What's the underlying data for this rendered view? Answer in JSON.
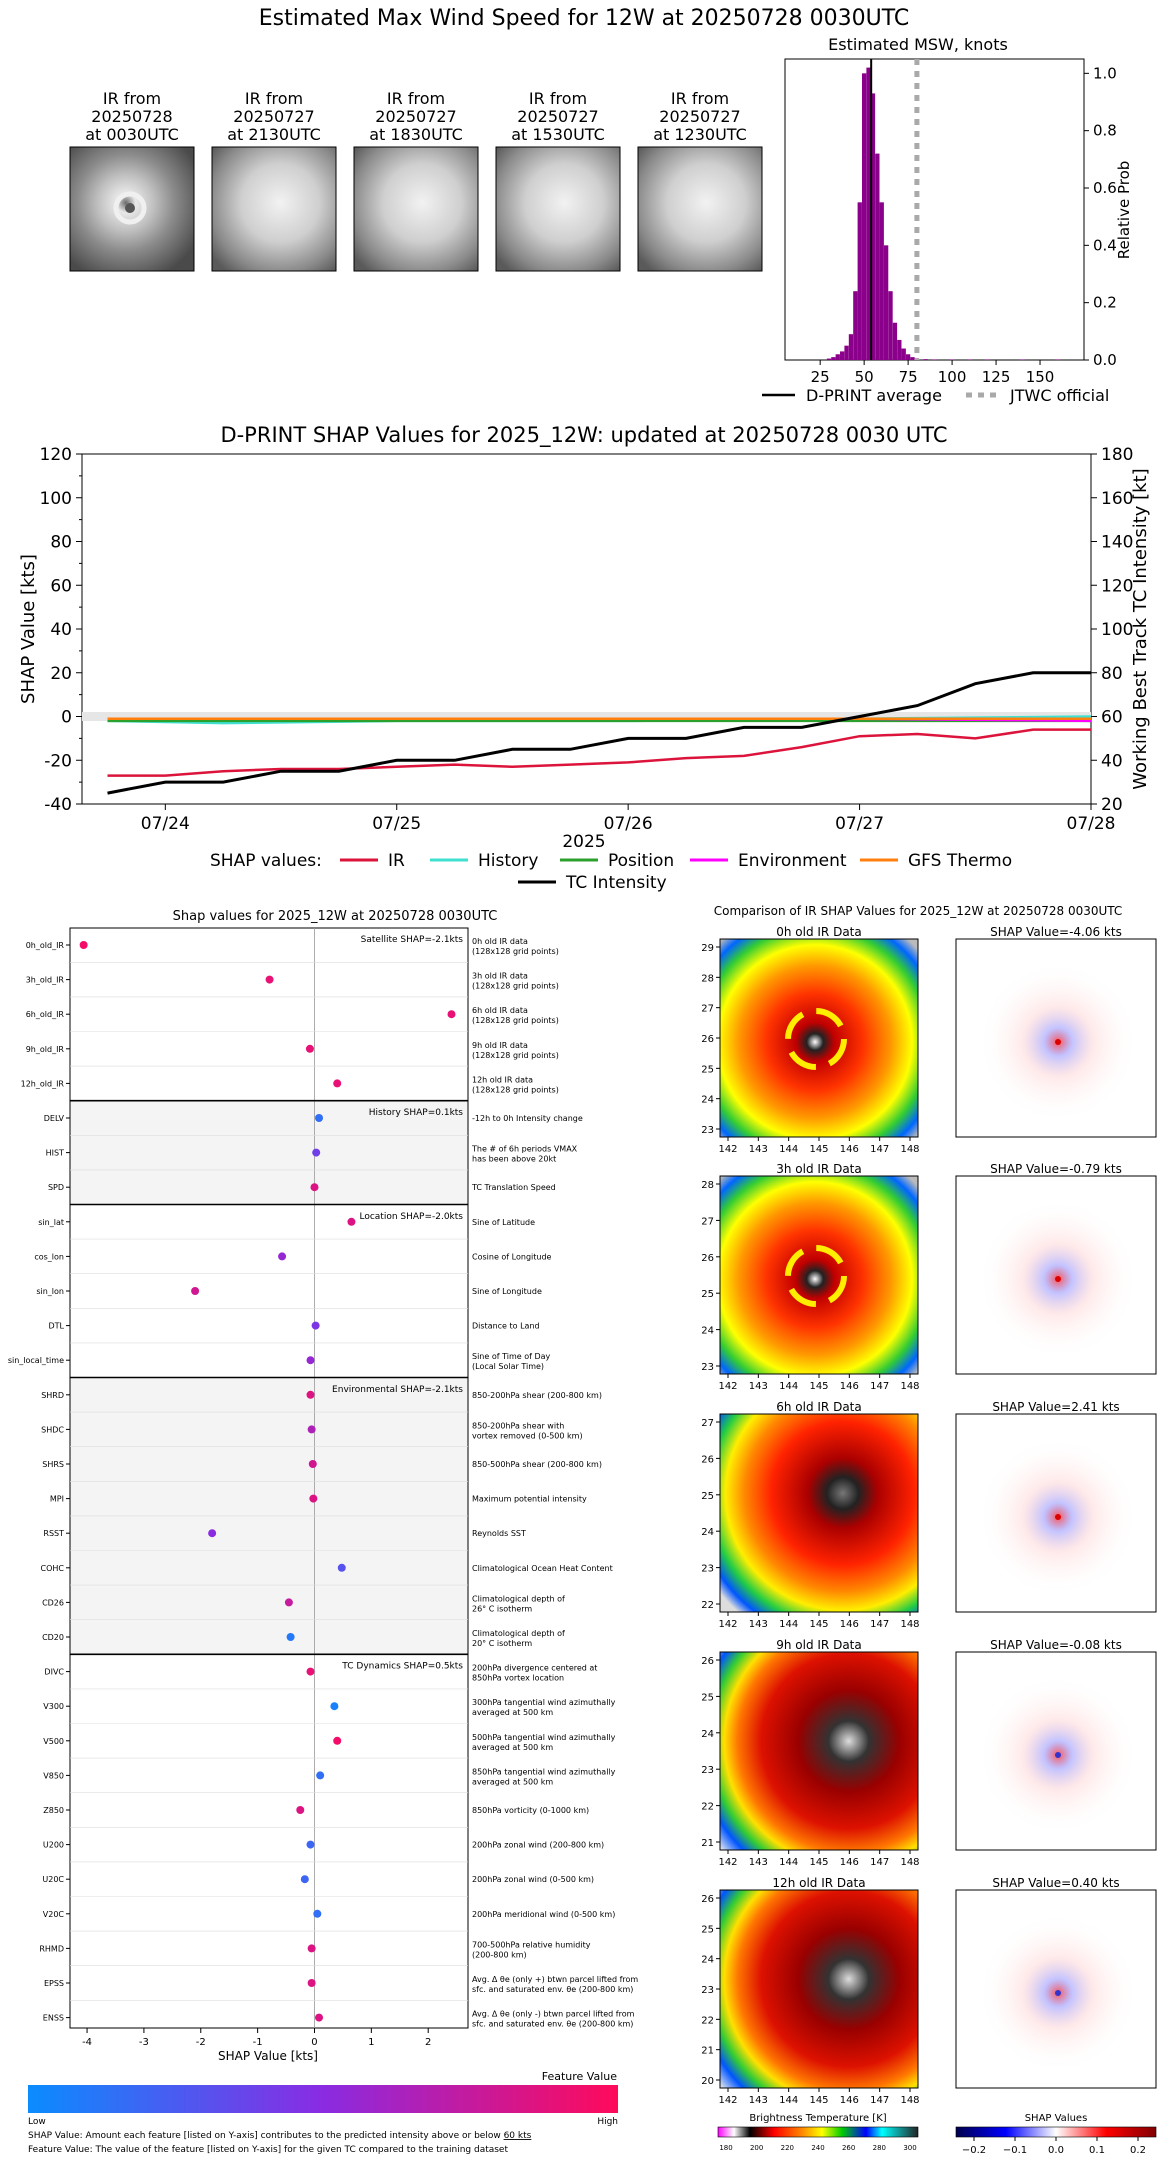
{
  "page_title": "Estimated Max Wind Speed for 12W at 20250728 0030UTC",
  "ir_thumbnails": [
    {
      "line1": "IR from",
      "line2": "20250728",
      "line3": "at 0030UTC"
    },
    {
      "line1": "IR from",
      "line2": "20250727",
      "line3": "at 2130UTC"
    },
    {
      "line1": "IR from",
      "line2": "20250727",
      "line3": "at 1830UTC"
    },
    {
      "line1": "IR from",
      "line2": "20250727",
      "line3": "at 1530UTC"
    },
    {
      "line1": "IR from",
      "line2": "20250727",
      "line3": "at 1230UTC"
    }
  ],
  "msw": {
    "title": "Estimated MSW, knots",
    "ylabel": "Relative Prob",
    "legend_avg": "D-PRINT average",
    "legend_jtwc": "JTWC official",
    "colors": {
      "bars": "#8b008b",
      "avg": "#000000",
      "jtwc": "#a9a9a9"
    }
  },
  "timeseries": {
    "title": "D-PRINT SHAP Values for 2025_12W: updated at 20250728 0030 UTC",
    "ylabel_left": "SHAP Value [kts]",
    "ylabel_right": "Working Best Track TC Intensity [kt]",
    "xlabel": "2025",
    "legend_title": "SHAP values:",
    "legend": [
      {
        "label": "IR",
        "color": "#dc143c"
      },
      {
        "label": "History",
        "color": "#40e0d0"
      },
      {
        "label": "Position",
        "color": "#2ca02c"
      },
      {
        "label": "Environment",
        "color": "#ff00ff"
      },
      {
        "label": "GFS Thermo",
        "color": "#ff7f0e"
      },
      {
        "label": "TC Intensity",
        "color": "#000000"
      }
    ]
  },
  "shap_panel": {
    "title": "Shap values for 2025_12W at 20250728 0030UTC",
    "xlabel": "SHAP Value [kts]",
    "groups": [
      {
        "label": "Satellite SHAP=-2.1kts"
      },
      {
        "label": "History SHAP=0.1kts"
      },
      {
        "label": "Location SHAP=-2.0kts"
      },
      {
        "label": "Environmental SHAP=-2.1kts"
      },
      {
        "label": "TC Dynamics SHAP=0.5kts"
      }
    ],
    "colorbar": {
      "title": "Feature Value",
      "low": "Low",
      "high": "High"
    },
    "footnote1_pre": "SHAP Value: Amount each feature [listed on Y-axis] contributes to the predicted intensity above or below ",
    "footnote1_link": "60 kts",
    "footnote2": "Feature Value: The value of the feature [listed on Y-axis] for the given TC compared to the training dataset"
  },
  "ir_compare": {
    "title": "Comparison of IR SHAP Values for 2025_12W at 20250728 0030UTC",
    "panels": [
      {
        "ir_title": "0h old IR Data",
        "shap_title": "SHAP Value=-4.06 kts"
      },
      {
        "ir_title": "3h old IR Data",
        "shap_title": "SHAP Value=-0.79 kts"
      },
      {
        "ir_title": "6h old IR Data",
        "shap_title": "SHAP Value=2.41 kts"
      },
      {
        "ir_title": "9h old IR Data",
        "shap_title": "SHAP Value=-0.08 kts"
      },
      {
        "ir_title": "12h old IR Data",
        "shap_title": "SHAP Value=0.40 kts"
      }
    ],
    "bt_colorbar_title": "Brightness Temperature [K]",
    "shap_colorbar_title": "SHAP Values"
  },
  "chart_data": [
    {
      "type": "bar",
      "title": "Estimated MSW, knots",
      "ylabel": "Relative Prob",
      "xlim": [
        5,
        175
      ],
      "ylim": [
        0,
        1.05
      ],
      "xticks": [
        25,
        50,
        75,
        100,
        125,
        150
      ],
      "yticks": [
        0.0,
        0.2,
        0.4,
        0.6,
        0.8,
        1.0
      ],
      "x": [
        30,
        32.5,
        35,
        37.5,
        40,
        42.5,
        45,
        47.5,
        50,
        52.5,
        55,
        57.5,
        60,
        62.5,
        65,
        67.5,
        70,
        72.5,
        75,
        77.5,
        80,
        85,
        90,
        100,
        110,
        120,
        140,
        160
      ],
      "values": [
        0.005,
        0.01,
        0.02,
        0.03,
        0.05,
        0.09,
        0.24,
        0.55,
        1.0,
        1.02,
        0.93,
        0.72,
        0.55,
        0.4,
        0.24,
        0.13,
        0.07,
        0.04,
        0.02,
        0.01,
        0.005,
        0.003,
        0.002,
        0.002,
        0.002,
        0.002,
        0.002,
        0.002
      ],
      "dprint_average": 54,
      "jtwc_official": 80,
      "legend": [
        "D-PRINT average",
        "JTWC official"
      ]
    },
    {
      "type": "line",
      "title": "D-PRINT SHAP Values for 2025_12W: updated at 20250728 0030 UTC",
      "xlabel": "2025",
      "ylabel": "SHAP Value [kts]",
      "ylabel_right": "Working Best Track TC Intensity [kt]",
      "xticks": [
        "07/24",
        "07/25",
        "07/26",
        "07/27",
        "07/28"
      ],
      "ylim": [
        -40,
        120
      ],
      "yticks": [
        -40,
        -20,
        0,
        20,
        40,
        60,
        80,
        100,
        120
      ],
      "ylim_right": [
        20,
        180
      ],
      "yticks_right": [
        20,
        40,
        60,
        80,
        100,
        120,
        140,
        160,
        180
      ],
      "series": [
        {
          "name": "IR",
          "color": "#dc143c",
          "x": [
            "07/23 18Z",
            "07/24 00Z",
            "07/24 06Z",
            "07/24 12Z",
            "07/24 18Z",
            "07/25 00Z",
            "07/25 06Z",
            "07/25 12Z",
            "07/25 18Z",
            "07/26 00Z",
            "07/26 06Z",
            "07/26 12Z",
            "07/26 18Z",
            "07/27 00Z",
            "07/27 06Z",
            "07/27 12Z",
            "07/27 18Z",
            "07/28 00Z"
          ],
          "values": [
            -27,
            -27,
            -25,
            -24,
            -24,
            -23,
            -22,
            -23,
            -22,
            -21,
            -19,
            -18,
            -14,
            -9,
            -8,
            -10,
            -6,
            -6
          ]
        },
        {
          "name": "History",
          "color": "#40e0d0",
          "x": [
            "07/23 18Z",
            "07/24 06Z",
            "07/25 00Z",
            "07/26 00Z",
            "07/27 00Z",
            "07/28 00Z"
          ],
          "values": [
            -2,
            -3,
            -2,
            -2,
            -1,
            0
          ]
        },
        {
          "name": "Position",
          "color": "#2ca02c",
          "x": [
            "07/23 18Z",
            "07/24 06Z",
            "07/25 00Z",
            "07/26 00Z",
            "07/27 00Z",
            "07/28 00Z"
          ],
          "values": [
            -2,
            -2,
            -2,
            -2,
            -2,
            -2
          ]
        },
        {
          "name": "Environment",
          "color": "#ff00ff",
          "x": [
            "07/23 18Z",
            "07/24 06Z",
            "07/25 00Z",
            "07/26 00Z",
            "07/27 00Z",
            "07/28 00Z"
          ],
          "values": [
            -1,
            -1,
            -1,
            -1,
            -1,
            -2
          ]
        },
        {
          "name": "GFS Thermo",
          "color": "#ff7f0e",
          "x": [
            "07/23 18Z",
            "07/24 06Z",
            "07/25 00Z",
            "07/26 00Z",
            "07/27 00Z",
            "07/28 00Z"
          ],
          "values": [
            -1,
            -1,
            -1,
            -1,
            -1,
            -1
          ]
        },
        {
          "name": "TC Intensity",
          "color": "#000000",
          "axis": "right",
          "x": [
            "07/23 18Z",
            "07/24 00Z",
            "07/24 06Z",
            "07/24 12Z",
            "07/24 18Z",
            "07/25 00Z",
            "07/25 06Z",
            "07/25 12Z",
            "07/25 18Z",
            "07/26 00Z",
            "07/26 06Z",
            "07/26 12Z",
            "07/26 18Z",
            "07/27 00Z",
            "07/27 06Z",
            "07/27 12Z",
            "07/27 18Z",
            "07/28 00Z"
          ],
          "values": [
            25,
            30,
            30,
            35,
            35,
            40,
            40,
            45,
            45,
            50,
            50,
            55,
            55,
            60,
            65,
            75,
            80,
            80
          ]
        }
      ]
    },
    {
      "type": "scatter",
      "title": "Shap values for 2025_12W at 20250728 0030UTC",
      "xlabel": "SHAP Value [kts]",
      "xlim": [
        -4.3,
        2.7
      ],
      "xticks": [
        -4,
        -3,
        -2,
        -1,
        0,
        1,
        2
      ],
      "colorbar": {
        "label": "Feature Value",
        "low": "Low",
        "high": "High",
        "low_color": "#1e90ff",
        "high_color": "#ff1493"
      },
      "features": [
        {
          "name": "0h_old_IR",
          "desc1": "0h old IR data",
          "desc2": "(128x128 grid points)",
          "shap": -4.06,
          "fv": 0.95
        },
        {
          "name": "3h_old_IR",
          "desc1": "3h old IR data",
          "desc2": "(128x128 grid points)",
          "shap": -0.79,
          "fv": 0.9
        },
        {
          "name": "6h_old_IR",
          "desc1": "6h old IR data",
          "desc2": "(128x128 grid points)",
          "shap": 2.41,
          "fv": 0.9
        },
        {
          "name": "9h_old_IR",
          "desc1": "9h old IR data",
          "desc2": "(128x128 grid points)",
          "shap": -0.08,
          "fv": 0.9
        },
        {
          "name": "12h_old_IR",
          "desc1": "12h old IR data",
          "desc2": "(128x128 grid points)",
          "shap": 0.4,
          "fv": 0.9
        },
        {
          "name": "DELV",
          "desc1": "-12h to 0h Intensity change",
          "desc2": "",
          "shap": 0.08,
          "fv": 0.15
        },
        {
          "name": "HIST",
          "desc1": "The # of 6h periods VMAX",
          "desc2": "has been above 20kt",
          "shap": 0.03,
          "fv": 0.4
        },
        {
          "name": "SPD",
          "desc1": "TC Translation Speed",
          "desc2": "",
          "shap": 0.0,
          "fv": 0.85
        },
        {
          "name": "sin_lat",
          "desc1": "Sine of Latitude",
          "desc2": "",
          "shap": 0.65,
          "fv": 0.85
        },
        {
          "name": "cos_lon",
          "desc1": "Cosine of Longitude",
          "desc2": "",
          "shap": -0.57,
          "fv": 0.55
        },
        {
          "name": "sin_lon",
          "desc1": "Sine of Longitude",
          "desc2": "",
          "shap": -2.1,
          "fv": 0.8
        },
        {
          "name": "DTL",
          "desc1": "Distance to Land",
          "desc2": "",
          "shap": 0.02,
          "fv": 0.45
        },
        {
          "name": "sin_local_time",
          "desc1": "Sine of Time of Day",
          "desc2": "(Local Solar Time)",
          "shap": -0.07,
          "fv": 0.55
        },
        {
          "name": "SHRD",
          "desc1": "850-200hPa shear (200-800 km)",
          "desc2": "",
          "shap": -0.07,
          "fv": 0.85
        },
        {
          "name": "SHDC",
          "desc1": "850-200hPa shear with",
          "desc2": "vortex removed (0-500 km)",
          "shap": -0.05,
          "fv": 0.65
        },
        {
          "name": "SHRS",
          "desc1": "850-500hPa shear (200-800 km)",
          "desc2": "",
          "shap": -0.03,
          "fv": 0.8
        },
        {
          "name": "MPI",
          "desc1": "Maximum potential intensity",
          "desc2": "",
          "shap": -0.02,
          "fv": 0.85
        },
        {
          "name": "RSST",
          "desc1": "Reynolds SST",
          "desc2": "",
          "shap": -1.8,
          "fv": 0.5
        },
        {
          "name": "COHC",
          "desc1": "Climatological Ocean Heat Content",
          "desc2": "",
          "shap": 0.48,
          "fv": 0.3
        },
        {
          "name": "CD26",
          "desc1": "Climatological depth of",
          "desc2": "26° C isotherm",
          "shap": -0.45,
          "fv": 0.75
        },
        {
          "name": "CD20",
          "desc1": "Climatological depth of",
          "desc2": "20° C isotherm",
          "shap": -0.42,
          "fv": 0.1
        },
        {
          "name": "DIVC",
          "desc1": "200hPa divergence centered at",
          "desc2": "850hPa vortex location",
          "shap": -0.07,
          "fv": 0.9
        },
        {
          "name": "V300",
          "desc1": "300hPa tangential wind azimuthally",
          "desc2": "averaged at 500 km",
          "shap": 0.35,
          "fv": 0.05
        },
        {
          "name": "V500",
          "desc1": "500hPa tangential wind azimuthally",
          "desc2": "averaged at 500 km",
          "shap": 0.4,
          "fv": 0.95
        },
        {
          "name": "V850",
          "desc1": "850hPa tangential wind azimuthally",
          "desc2": "averaged at 500 km",
          "shap": 0.1,
          "fv": 0.15
        },
        {
          "name": "Z850",
          "desc1": "850hPa vorticity (0-1000 km)",
          "desc2": "",
          "shap": -0.25,
          "fv": 0.85
        },
        {
          "name": "U200",
          "desc1": "200hPa zonal wind (200-800 km)",
          "desc2": "",
          "shap": -0.07,
          "fv": 0.2
        },
        {
          "name": "U20C",
          "desc1": "200hPa zonal wind (0-500 km)",
          "desc2": "",
          "shap": -0.17,
          "fv": 0.2
        },
        {
          "name": "V20C",
          "desc1": "200hPa meridional wind (0-500 km)",
          "desc2": "",
          "shap": 0.05,
          "fv": 0.15
        },
        {
          "name": "RHMD",
          "desc1": "700-500hPa relative humidity",
          "desc2": "(200-800 km)",
          "shap": -0.05,
          "fv": 0.85
        },
        {
          "name": "EPSS",
          "desc1": "Avg. Δ θe (only +) btwn parcel lifted from",
          "desc2": "sfc. and saturated env. θe (200-800 km)",
          "shap": -0.05,
          "fv": 0.85
        },
        {
          "name": "ENSS",
          "desc1": "Avg. Δ θe (only -) btwn parcel lifted from",
          "desc2": "sfc. and saturated env. θe (200-800 km)",
          "shap": 0.08,
          "fv": 0.85
        }
      ]
    }
  ],
  "ir_axes": [
    {
      "yticks": [
        "29",
        "28",
        "27",
        "26",
        "25",
        "24",
        "23"
      ],
      "xticks": [
        "142",
        "143",
        "144",
        "145",
        "146",
        "147",
        "148"
      ]
    },
    {
      "yticks": [
        "28",
        "27",
        "26",
        "25",
        "24",
        "23"
      ],
      "xticks": [
        "142",
        "143",
        "144",
        "145",
        "146",
        "147",
        "148"
      ]
    },
    {
      "yticks": [
        "27",
        "26",
        "25",
        "24",
        "23",
        "22"
      ],
      "xticks": [
        "142",
        "143",
        "144",
        "145",
        "146",
        "147",
        "148"
      ]
    },
    {
      "yticks": [
        "26",
        "25",
        "24",
        "23",
        "22",
        "21"
      ],
      "xticks": [
        "142",
        "143",
        "144",
        "145",
        "146",
        "147",
        "148"
      ]
    },
    {
      "yticks": [
        "26",
        "25",
        "24",
        "23",
        "22",
        "21",
        "20"
      ],
      "xticks": [
        "142",
        "143",
        "144",
        "145",
        "146",
        "147",
        "148"
      ]
    }
  ],
  "bt_colorbar_ticks": [
    "180",
    "200",
    "220",
    "240",
    "260",
    "280",
    "300"
  ],
  "shap_colorbar_ticks": [
    "−0.2",
    "−0.1",
    "0.0",
    "0.1",
    "0.2"
  ]
}
